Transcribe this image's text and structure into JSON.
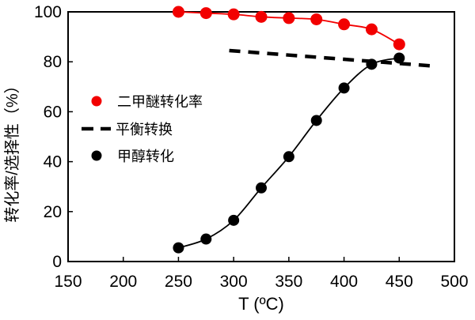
{
  "chart_data": {
    "type": "line",
    "title": "",
    "xlabel": "T (ºC)",
    "ylabel": "转化率/选择性（%）",
    "xlim": [
      150,
      500
    ],
    "ylim": [
      0,
      100
    ],
    "x_ticks": [
      150,
      200,
      250,
      300,
      350,
      400,
      450,
      500
    ],
    "y_ticks": [
      0,
      20,
      40,
      60,
      80,
      100
    ],
    "grid": false,
    "legend_position": "inside-upper-left",
    "series": [
      {
        "name": "二甲醚转化率",
        "type": "line+marker",
        "marker": "circle",
        "color": "#f20000",
        "x": [
          250,
          275,
          300,
          325,
          350,
          375,
          400,
          425,
          450
        ],
        "values": [
          100,
          99.5,
          99,
          98,
          97.5,
          97,
          95,
          93,
          87
        ]
      },
      {
        "name": "平衡转换",
        "type": "dashed-line",
        "color": "#000000",
        "x": [
          296,
          478
        ],
        "values": [
          84.5,
          78.4
        ]
      },
      {
        "name": "甲醇转化",
        "type": "line+marker",
        "marker": "circle",
        "color": "#000000",
        "x": [
          250,
          275,
          300,
          325,
          350,
          375,
          400,
          425,
          450
        ],
        "values": [
          5.5,
          9,
          16.5,
          29.5,
          42,
          56.5,
          69.5,
          79,
          81.5
        ]
      }
    ]
  }
}
